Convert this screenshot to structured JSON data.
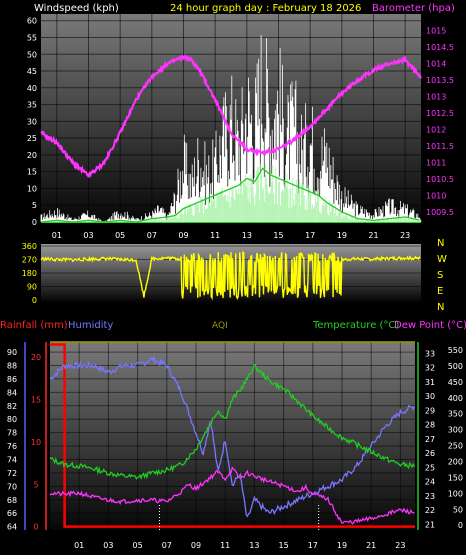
{
  "header": {
    "left_label": "Windspeed (kph)",
    "center_label": "24 hour graph day : February 18 2026",
    "right_label": "Barometer (hpa)"
  },
  "bottom_header": {
    "rainfall_label": "Rainfall (mm)",
    "humidity_label": "Humidity",
    "aqi_label": "AQI",
    "temperature_label": "Temperature (°C)",
    "dewpoint_label": "Dew Point (°C)"
  },
  "colors": {
    "wind_speed": "#ffffff",
    "wind_average": "#22cc22",
    "barometer": "#ff33ff",
    "wind_direction": "#ffff00",
    "rainfall": "#ff0000",
    "humidity": "#7777ff",
    "temperature": "#22cc22",
    "dew_point": "#ff33ff",
    "aqi": "#999900"
  },
  "chart_data": [
    {
      "type": "line",
      "x_ticks": [
        "01",
        "03",
        "05",
        "07",
        "09",
        "11",
        "13",
        "15",
        "17",
        "19",
        "21",
        "23"
      ],
      "xlim": [
        0,
        24
      ],
      "grid": true,
      "y_left": {
        "ticks": [
          "0",
          "5",
          "10",
          "15",
          "20",
          "25",
          "30",
          "35",
          "40",
          "45",
          "50",
          "55",
          "60"
        ],
        "ylim": [
          0,
          62
        ]
      },
      "y_right": {
        "ticks": [
          "1009.5",
          "1010",
          "1010.5",
          "1011",
          "1011.5",
          "1012",
          "1012.5",
          "1013",
          "1013.5",
          "1014",
          "1014.5",
          "1015"
        ],
        "ylim": [
          1009.2,
          1015.5
        ]
      },
      "series": [
        {
          "axis": "right",
          "x": [
            0,
            1,
            2,
            2.5,
            3,
            3.5,
            4,
            5,
            6,
            7,
            8,
            9,
            9.5,
            10,
            11,
            12,
            13,
            14,
            15,
            16,
            17,
            18,
            19,
            20,
            21,
            22,
            23,
            24
          ],
          "values": [
            1011.9,
            1011.6,
            1011.0,
            1010.8,
            1010.6,
            1010.8,
            1011.0,
            1011.9,
            1012.9,
            1013.6,
            1014.0,
            1014.2,
            1014.1,
            1013.8,
            1012.9,
            1011.9,
            1011.4,
            1011.3,
            1011.4,
            1011.7,
            1012.1,
            1012.6,
            1013.1,
            1013.5,
            1013.8,
            1014.0,
            1014.1,
            1013.6
          ]
        },
        {
          "axis": "left",
          "x": [
            0,
            1,
            2,
            3,
            4,
            5,
            6,
            7,
            7.5,
            8,
            8.5,
            9,
            9.5,
            10,
            10.5,
            11,
            11.5,
            12,
            12.5,
            13,
            13.5,
            14,
            14.5,
            15,
            15.5,
            16,
            16.5,
            17,
            17.5,
            18,
            18.5,
            19,
            20,
            21,
            22,
            23,
            24
          ],
          "values": [
            2,
            4,
            1,
            3,
            0,
            4,
            1,
            3,
            5,
            2,
            10,
            23,
            15,
            26,
            18,
            22,
            33,
            40,
            30,
            45,
            38,
            57,
            40,
            48,
            33,
            38,
            28,
            34,
            25,
            27,
            18,
            10,
            5,
            3,
            6,
            5,
            2
          ]
        },
        {
          "axis": "left",
          "x": [
            0,
            1,
            2,
            3,
            4,
            5,
            6,
            7,
            8,
            8.5,
            9,
            9.5,
            10,
            10.5,
            11,
            11.5,
            12,
            12.5,
            13,
            13.5,
            14,
            14.5,
            15,
            15.5,
            16,
            16.5,
            17,
            17.5,
            18,
            19,
            20,
            21,
            22,
            23,
            24
          ],
          "values": [
            0,
            0.5,
            0,
            0.5,
            0,
            0.5,
            0,
            1,
            1.5,
            2,
            4,
            5,
            6,
            7,
            8,
            9,
            10,
            11,
            13,
            12,
            16,
            14,
            13,
            12,
            11,
            10,
            9,
            8,
            6,
            3,
            1,
            0.5,
            1,
            1.5,
            0.5
          ]
        }
      ]
    },
    {
      "type": "scatter",
      "x_ticks": [
        "01",
        "03",
        "05",
        "07",
        "09",
        "11",
        "13",
        "15",
        "17",
        "19",
        "21",
        "23"
      ],
      "xlim": [
        0,
        24
      ],
      "y_left": {
        "ticks": [
          "0",
          "90",
          "180",
          "270",
          "360"
        ],
        "ylim": [
          0,
          360
        ]
      },
      "y_right": {
        "ticks": [
          "N",
          "W",
          "S",
          "E",
          "N"
        ]
      },
      "series": [
        {
          "x": [
            0,
            1,
            2,
            3,
            4,
            5,
            6,
            6.5,
            7,
            8,
            9,
            9.5,
            10,
            10.5,
            11,
            11.5,
            12,
            12.5,
            13,
            13.5,
            14,
            14.5,
            15,
            15.5,
            16,
            16.5,
            17,
            17.5,
            18,
            18.5,
            19,
            20,
            21,
            22,
            23,
            24
          ],
          "values": [
            275,
            270,
            268,
            272,
            276,
            270,
            268,
            25,
            275,
            280,
            272,
            60,
            250,
            130,
            240,
            90,
            225,
            120,
            280,
            80,
            260,
            70,
            240,
            110,
            270,
            90,
            250,
            100,
            230,
            60,
            270,
            275,
            272,
            278,
            280,
            276
          ]
        }
      ]
    },
    {
      "type": "line",
      "x_ticks": [
        "01",
        "03",
        "05",
        "07",
        "09",
        "11",
        "13",
        "15",
        "17",
        "19",
        "21",
        "23"
      ],
      "xlim": [
        -1,
        24
      ],
      "grid": true,
      "y_humidity": {
        "ticks": [
          "64",
          "66",
          "68",
          "70",
          "72",
          "74",
          "76",
          "78",
          "80",
          "82",
          "84",
          "86",
          "88",
          "90"
        ],
        "ylim": [
          63.5,
          91.5
        ]
      },
      "y_rainfall": {
        "ticks": [
          "0",
          "5",
          "10",
          "15",
          "20"
        ],
        "ylim": [
          -0.4,
          21.8
        ]
      },
      "y_temperature": {
        "ticks": [
          "21",
          "22",
          "23",
          "24",
          "25",
          "26",
          "27",
          "28",
          "29",
          "30",
          "31",
          "32",
          "33"
        ],
        "ylim": [
          20.6,
          33.8
        ]
      },
      "y_aqi": {
        "ticks": [
          "0",
          "50",
          "100",
          "150",
          "200",
          "250",
          "300",
          "350",
          "400",
          "450",
          "500",
          "550"
        ],
        "ylim": [
          -15,
          575
        ]
      },
      "series": [
        {
          "name": "Rainfall (mm)",
          "x": [
            -1,
            0,
            0,
            24
          ],
          "values": [
            21.5,
            21.5,
            0,
            0
          ]
        },
        {
          "name": "Humidity",
          "x": [
            -1,
            0,
            1,
            2,
            3,
            4,
            5,
            6,
            7,
            8,
            9,
            9.5,
            10,
            10.5,
            11,
            11.5,
            12,
            12.5,
            13,
            14,
            15,
            16,
            17,
            18,
            19,
            20,
            21,
            22,
            23,
            24
          ],
          "values": [
            86,
            88,
            88,
            88,
            87,
            88,
            88,
            89,
            88,
            84,
            78,
            75,
            80,
            72,
            77,
            70,
            72,
            65,
            68,
            66,
            67,
            68,
            69,
            70,
            71,
            73,
            76,
            79,
            81,
            82
          ]
        },
        {
          "name": "Temperature (°C)",
          "x": [
            -1,
            0,
            1,
            2,
            3,
            4,
            5,
            6,
            7,
            8,
            9,
            10,
            10.5,
            11,
            11.5,
            12,
            12.5,
            13,
            13.5,
            14,
            15,
            16,
            17,
            18,
            19,
            20,
            21,
            22,
            23,
            24
          ],
          "values": [
            25.6,
            25.2,
            25.1,
            24.9,
            24.6,
            24.4,
            24.3,
            24.6,
            24.8,
            25.2,
            26.3,
            28.1,
            29.0,
            28.4,
            29.8,
            30.4,
            31.2,
            32.1,
            31.6,
            31.1,
            30.5,
            29.6,
            28.6,
            27.8,
            27.1,
            26.6,
            26.1,
            25.6,
            25.2,
            25.1
          ]
        },
        {
          "name": "Dew Point (°C)",
          "x": [
            -1,
            0,
            1,
            2,
            3,
            4,
            5,
            6,
            7,
            8,
            8.5,
            9,
            9.5,
            10,
            10.5,
            11,
            11.5,
            12,
            12.5,
            13,
            13.5,
            14,
            15,
            16,
            16.5,
            17,
            18,
            19,
            20,
            21,
            22,
            23,
            24
          ],
          "values": [
            23.2,
            23.1,
            23.2,
            22.9,
            22.7,
            22.6,
            22.7,
            22.7,
            22.6,
            23.3,
            23.8,
            23.5,
            23.9,
            24.3,
            24.7,
            24.2,
            24.9,
            24.2,
            24.6,
            24.4,
            24.2,
            24.0,
            23.7,
            23.3,
            23.6,
            23.1,
            22.8,
            21.1,
            21.2,
            21.4,
            21.7,
            22.0,
            21.8
          ]
        }
      ]
    }
  ]
}
